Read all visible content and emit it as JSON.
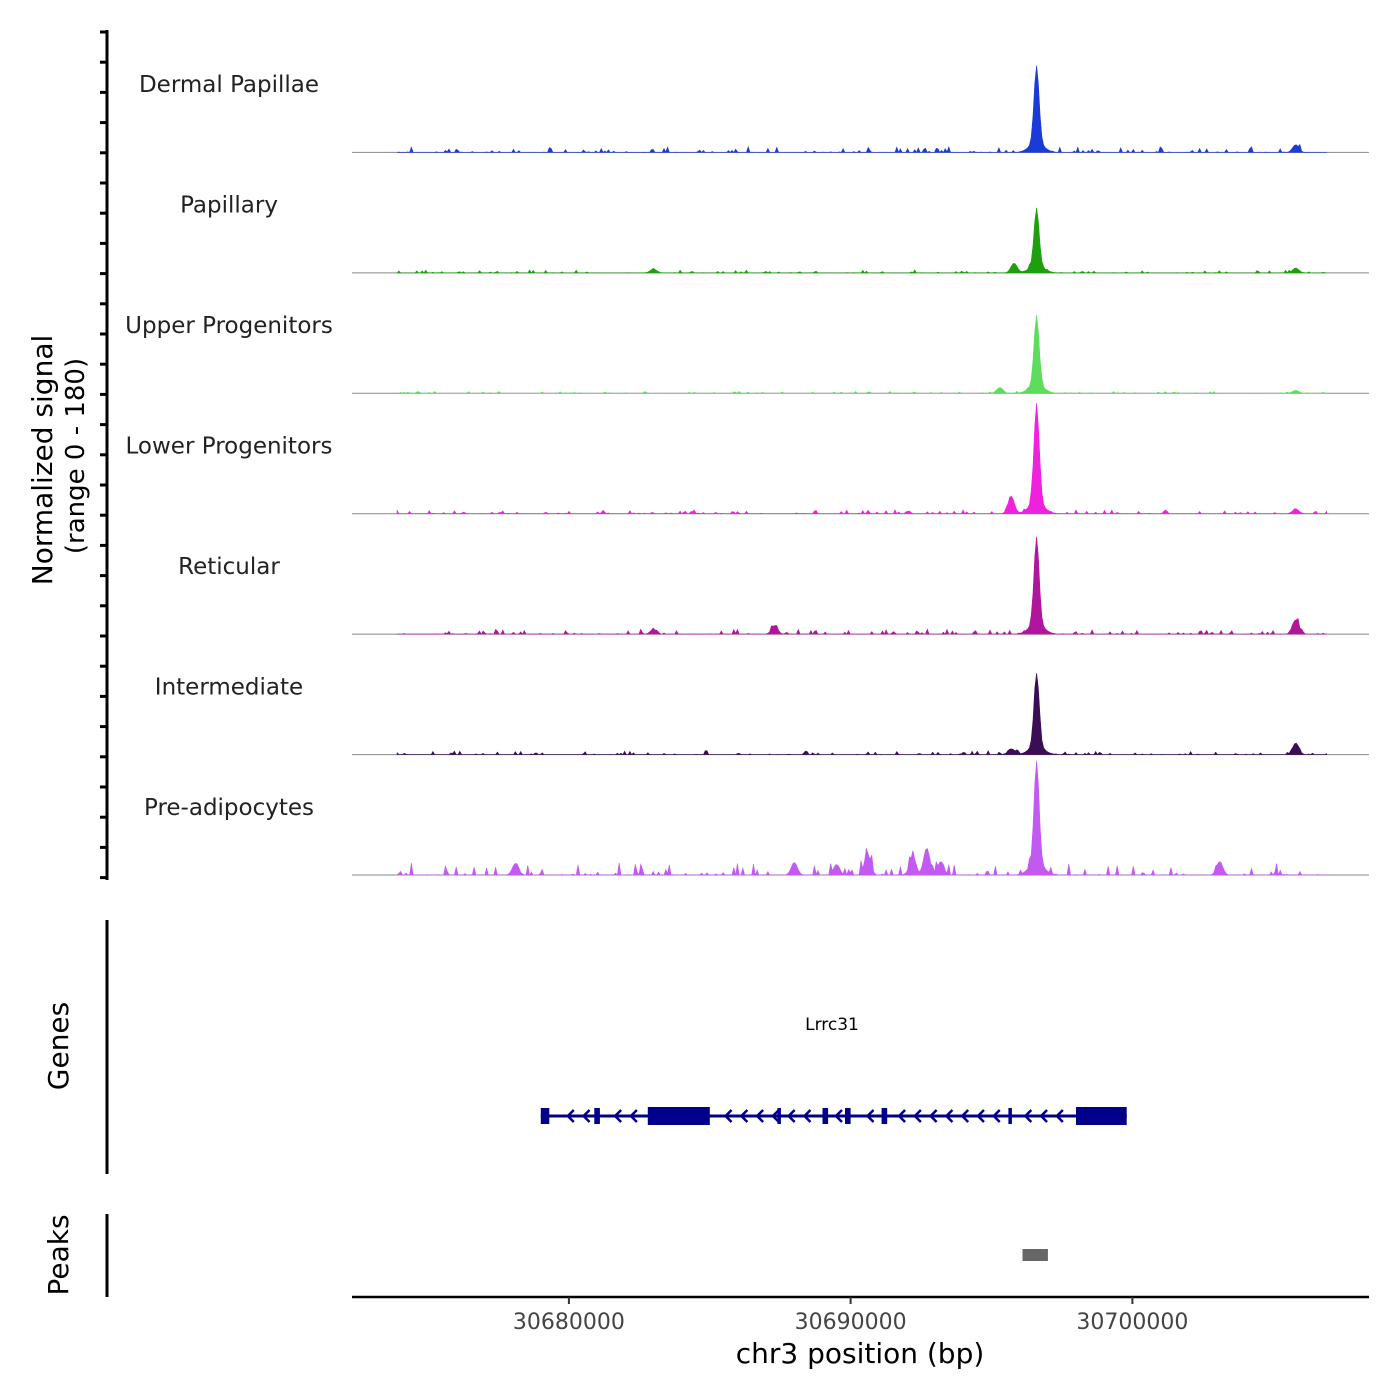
{
  "chart_data": {
    "type": "area",
    "title": "",
    "chromosome": "chr3",
    "xlabel": "chr3 position (bp)",
    "ylabel_line1": "Normalized signal",
    "ylabel_line2": "(range 0 - 180)",
    "y_range": [
      0,
      180
    ],
    "x_range": [
      30672300,
      30708400
    ],
    "x_ticks": [
      30680000,
      30690000,
      30700000
    ],
    "x_tick_labels": [
      "30680000",
      "30690000",
      "30700000"
    ],
    "tracks": [
      {
        "name": "Dermal Papillae",
        "color": "#1a3bd6",
        "seed": 11,
        "noise": 6,
        "main_peak": 80,
        "extra_peaks": [
          [
            30705800,
            8
          ]
        ]
      },
      {
        "name": "Papillary",
        "color": "#1e9f0e",
        "seed": 23,
        "noise": 3,
        "main_peak": 60,
        "extra_peaks": [
          [
            30695800,
            10
          ],
          [
            30683000,
            4
          ],
          [
            30705800,
            5
          ]
        ]
      },
      {
        "name": "Upper Progenitors",
        "color": "#5ddc5d",
        "seed": 37,
        "noise": 2,
        "main_peak": 72,
        "extra_peaks": [
          [
            30695300,
            6
          ],
          [
            30705800,
            3
          ]
        ]
      },
      {
        "name": "Lower Progenitors",
        "color": "#ee22dd",
        "seed": 41,
        "noise": 4,
        "main_peak": 102,
        "extra_peaks": [
          [
            30695700,
            18
          ],
          [
            30705800,
            5
          ]
        ]
      },
      {
        "name": "Reticular",
        "color": "#b0169b",
        "seed": 53,
        "noise": 5,
        "main_peak": 90,
        "extra_peaks": [
          [
            30687300,
            9
          ],
          [
            30705800,
            15
          ],
          [
            30683000,
            5
          ]
        ]
      },
      {
        "name": "Intermediate",
        "color": "#3a0d55",
        "seed": 67,
        "noise": 4,
        "main_peak": 75,
        "extra_peaks": [
          [
            30705800,
            12
          ],
          [
            30695700,
            6
          ]
        ]
      },
      {
        "name": "Pre-adipocytes",
        "color": "#c25af2",
        "seed": 79,
        "noise": 13,
        "main_peak": 105,
        "extra_peaks": [
          [
            30690600,
            22
          ],
          [
            30692700,
            28
          ],
          [
            30692200,
            20
          ],
          [
            30693200,
            14
          ],
          [
            30678100,
            12
          ],
          [
            30703100,
            14
          ],
          [
            30689500,
            11
          ],
          [
            30688000,
            13
          ]
        ]
      }
    ],
    "main_peak_position": 30696600,
    "signal_start": 30673900,
    "signal_end": 30706900,
    "genes_label": "Genes",
    "gene": {
      "name": "Lrrc31",
      "color": "#00008b",
      "strand": "-",
      "start": 30679000,
      "end": 30699800,
      "exons": [
        [
          30679000,
          30679300
        ],
        [
          30680900,
          30681100
        ],
        [
          30682800,
          30685000
        ],
        [
          30687400,
          30687500
        ],
        [
          30689000,
          30689200
        ],
        [
          30689800,
          30690000
        ],
        [
          30691100,
          30691300
        ],
        [
          30695600,
          30695700
        ],
        [
          30698000,
          30699800
        ]
      ]
    },
    "peaks_label": "Peaks",
    "peaks_color": "#666666",
    "peaks": [
      [
        30696100,
        30697000
      ]
    ]
  }
}
